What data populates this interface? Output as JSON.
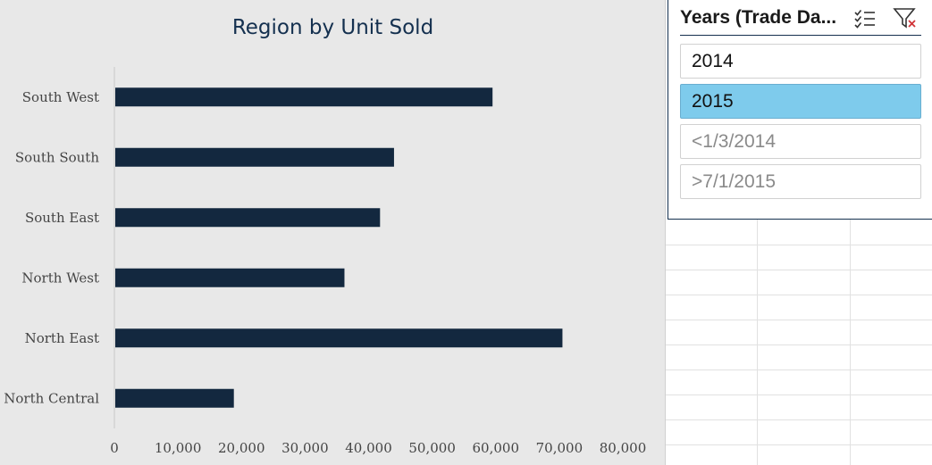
{
  "chart_data": {
    "type": "bar",
    "title": "Region by Unit Sold",
    "categories": [
      "South West",
      "South South",
      "South East",
      "North West",
      "North East",
      "North Central"
    ],
    "series": [
      {
        "values": [
          59500,
          44000,
          41800,
          36200,
          70500,
          18800
        ]
      }
    ],
    "xlim": [
      0,
      80000
    ],
    "xticks": [
      0,
      10000,
      20000,
      30000,
      40000,
      50000,
      60000,
      70000,
      80000
    ],
    "xtick_labels": [
      "0",
      "10,000",
      "20,000",
      "30,000",
      "40,000",
      "50,000",
      "60,000",
      "70,000",
      "80,000"
    ],
    "orientation": "horizontal",
    "bar_color": "#13283f",
    "grid": false
  },
  "slicer": {
    "title": "Years (Trade Da...",
    "items": [
      {
        "label": "2014",
        "state": "normal"
      },
      {
        "label": "2015",
        "state": "selected"
      },
      {
        "label": "<1/3/2014",
        "state": "nodata"
      },
      {
        "label": ">7/1/2015",
        "state": "nodata"
      }
    ],
    "icons": {
      "multiselect": "multi-select-icon",
      "clear": "clear-filter-icon"
    },
    "accent": "#7ecbec",
    "border": "#14304f"
  }
}
